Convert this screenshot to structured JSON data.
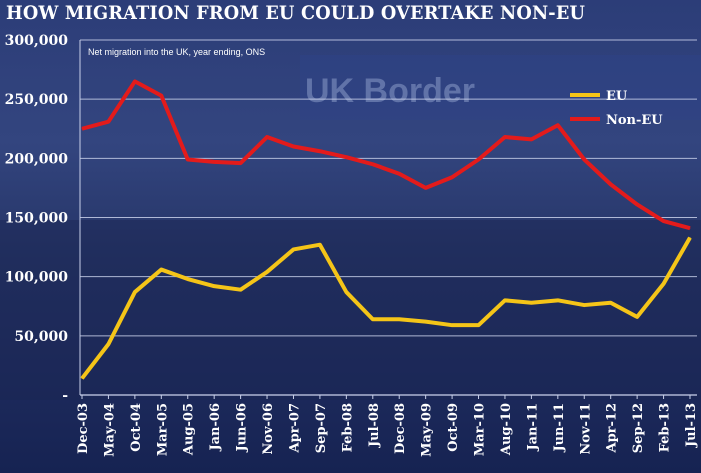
{
  "chart_data": {
    "type": "line",
    "title": "HOW MIGRATION FROM EU COULD OVERTAKE NON-EU",
    "subtitle": "Net migration into the UK, year ending, ONS",
    "background_sign": "UK Border",
    "xlabel": "",
    "ylabel": "",
    "ylim": [
      0,
      300000
    ],
    "yticks": [
      0,
      50000,
      100000,
      150000,
      200000,
      250000,
      300000
    ],
    "ytick_labels": [
      "-",
      "50,000",
      "100,000",
      "150,000",
      "200,000",
      "250,000",
      "300,000"
    ],
    "categories": [
      "Dec-03",
      "May-04",
      "Oct-04",
      "Mar-05",
      "Aug-05",
      "Jan-06",
      "Jun-06",
      "Nov-06",
      "Apr-07",
      "Sep-07",
      "Feb-08",
      "Jul-08",
      "Dec-08",
      "May-09",
      "Oct-09",
      "Mar-10",
      "Aug-10",
      "Jan-11",
      "Jun-11",
      "Nov-11",
      "Apr-12",
      "Sep-12",
      "Feb-13",
      "Jul-13"
    ],
    "grid": true,
    "legend_position": "top-right",
    "series": [
      {
        "name": "EU",
        "color": "#f5c518",
        "values": [
          14000,
          43000,
          87000,
          106000,
          98000,
          92000,
          89000,
          104000,
          123000,
          127000,
          87000,
          64000,
          64000,
          62000,
          59000,
          59000,
          80000,
          78000,
          80000,
          76000,
          78000,
          66000,
          94000,
          133000
        ]
      },
      {
        "name": "Non-EU",
        "color": "#e31b1b",
        "values": [
          225000,
          231000,
          265000,
          253000,
          199000,
          197000,
          196000,
          218000,
          210000,
          206000,
          201000,
          195000,
          187000,
          175000,
          184000,
          199000,
          218000,
          216000,
          228000,
          199000,
          178000,
          161000,
          147000,
          141000
        ]
      }
    ]
  }
}
